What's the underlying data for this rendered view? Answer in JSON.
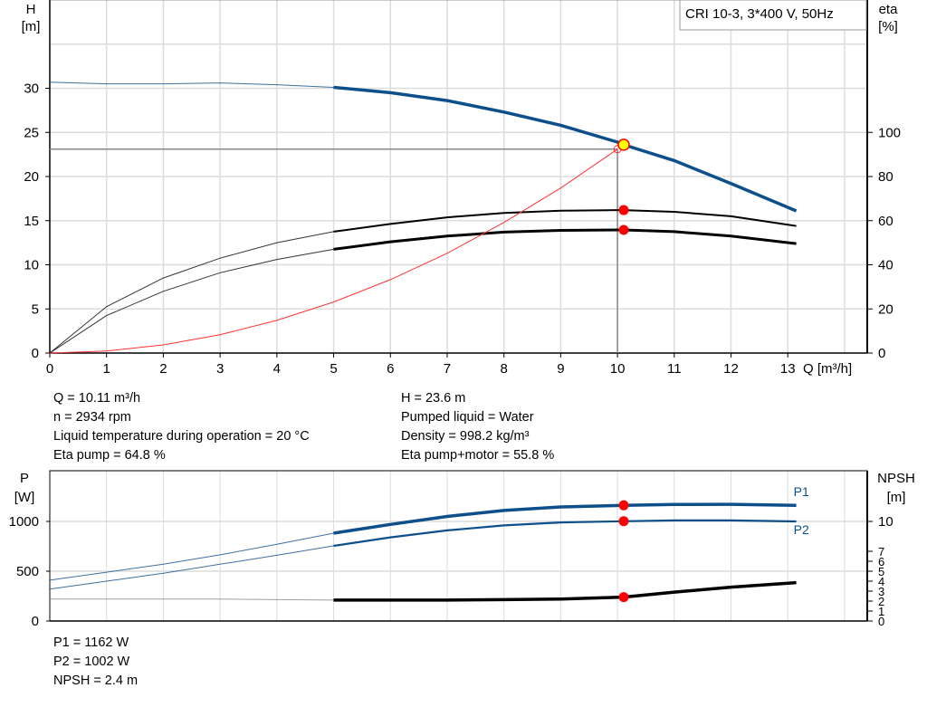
{
  "chart_data": [
    {
      "type": "line",
      "title": "CRI 10-3, 3*400 V, 50Hz",
      "xlabel": "Q [m³/h]",
      "ylabel": "H\n[m]",
      "ylabel_parts": [
        "H",
        "[m]"
      ],
      "y2label_parts": [
        "eta",
        "[%]"
      ],
      "xlim": [
        0,
        14.4
      ],
      "ylim": [
        0,
        40
      ],
      "y2lim": [
        0,
        160
      ],
      "x_ticks": [
        "0",
        "1",
        "2",
        "3",
        "4",
        "5",
        "6",
        "7",
        "8",
        "9",
        "10",
        "11",
        "12",
        "13"
      ],
      "y_ticks": [
        "0",
        "5",
        "10",
        "15",
        "20",
        "25",
        "30"
      ],
      "y2_ticks": [
        "0",
        "20",
        "40",
        "60",
        "80",
        "100"
      ],
      "grid": true,
      "legend": "top-right",
      "colors": {
        "head": "#0d4f8b",
        "eta": "#000000",
        "system": "#ff3333",
        "duty_marker": "#ffff00",
        "marker": "#ff0000",
        "guide": "#888888"
      },
      "series": [
        {
          "axis": "H",
          "style": "head",
          "x": [
            0,
            1,
            2,
            3,
            4,
            5,
            6,
            7,
            8,
            9,
            10,
            10.11,
            11,
            12,
            13.15
          ],
          "y": [
            30.7,
            30.5,
            30.5,
            30.6,
            30.4,
            30.1,
            29.5,
            28.6,
            27.3,
            25.8,
            23.9,
            23.6,
            21.8,
            19.2,
            16.1
          ]
        },
        {
          "axis": "eta",
          "style": "eta-pump",
          "x": [
            0,
            1,
            2,
            3,
            4,
            5,
            6,
            7,
            8,
            9,
            10,
            10.11,
            11,
            12,
            13.15
          ],
          "y": [
            0,
            21,
            34,
            43,
            50,
            55,
            58.5,
            61.5,
            63.5,
            64.5,
            64.8,
            64.8,
            64,
            62,
            57.6
          ]
        },
        {
          "axis": "eta",
          "style": "eta-pump-motor",
          "x": [
            0,
            1,
            2,
            3,
            4,
            5,
            6,
            7,
            8,
            9,
            10,
            10.11,
            11,
            12,
            13.15
          ],
          "y": [
            0,
            17,
            28,
            36.4,
            42.4,
            47,
            50.4,
            53,
            54.8,
            55.6,
            55.8,
            55.8,
            55,
            53,
            49.6
          ]
        },
        {
          "axis": "H",
          "style": "system",
          "x": [
            0,
            1,
            2,
            3,
            4,
            5,
            6,
            7,
            8,
            9,
            10
          ],
          "y": [
            0,
            0.23,
            0.92,
            2.08,
            3.7,
            5.78,
            8.32,
            11.3,
            14.8,
            18.7,
            23.1
          ]
        }
      ],
      "duty_point": {
        "Q": 10.11,
        "H": 23.6,
        "eta_pump": 64.8,
        "eta_pump_motor": 55.8
      }
    },
    {
      "type": "line",
      "ylabel_parts": [
        "P",
        "[W]"
      ],
      "y2label_parts": [
        "NPSH",
        "[m]"
      ],
      "xlim": [
        0,
        14.4
      ],
      "ylim": [
        0,
        1500
      ],
      "y2lim": [
        0,
        15
      ],
      "y_ticks": [
        "0",
        "500",
        "1000"
      ],
      "y2_ticks": [
        "0",
        "1",
        "2",
        "3",
        "4",
        "5",
        "6",
        "7",
        "10"
      ],
      "grid": true,
      "series": [
        {
          "name": "P1",
          "axis": "P",
          "x": [
            0,
            1,
            2,
            3,
            4,
            5,
            6,
            7,
            8,
            9,
            10.11,
            11,
            12,
            13.15
          ],
          "y": [
            410,
            490,
            570,
            665,
            770,
            882,
            970,
            1050,
            1110,
            1145,
            1162,
            1170,
            1172,
            1162
          ]
        },
        {
          "name": "P2",
          "axis": "P",
          "x": [
            0,
            1,
            2,
            3,
            4,
            5,
            6,
            7,
            8,
            9,
            10.11,
            11,
            12,
            13.15
          ],
          "y": [
            320,
            400,
            480,
            570,
            660,
            755,
            840,
            910,
            960,
            990,
            1002,
            1010,
            1010,
            1000
          ]
        },
        {
          "axis": "NPSH",
          "x": [
            0,
            1,
            2,
            3,
            4,
            5,
            6,
            7,
            8,
            9,
            10.11,
            11,
            12,
            13.15
          ],
          "y": [
            2.2,
            2.2,
            2.2,
            2.2,
            2.15,
            2.1,
            2.1,
            2.1,
            2.15,
            2.2,
            2.4,
            2.9,
            3.4,
            3.85
          ]
        }
      ],
      "duty_point": {
        "Q": 10.11,
        "P1": 1162,
        "P2": 1002,
        "NPSH": 2.4
      }
    }
  ],
  "info_top_left": [
    "Q = 10.11 m³/h",
    "n = 2934 rpm",
    "Liquid temperature during operation = 20 °C",
    "Eta pump = 64.8 %"
  ],
  "info_top_right": [
    "H = 23.6 m",
    "Pumped liquid = Water",
    "Density = 998.2 kg/m³",
    "Eta pump+motor = 55.8 %"
  ],
  "info_bottom": [
    "P1 = 1162 W",
    "P2 = 1002 W",
    "NPSH = 2.4 m"
  ]
}
